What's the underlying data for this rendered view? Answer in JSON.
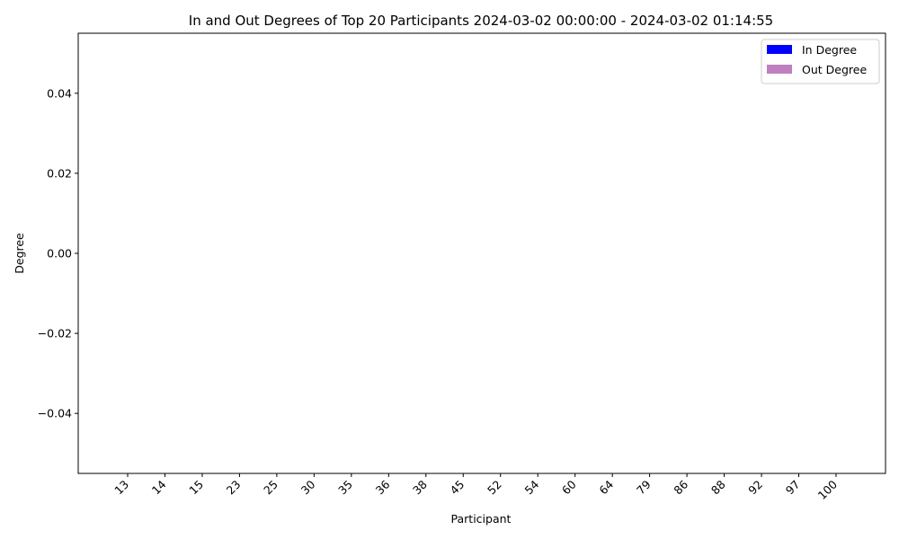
{
  "chart_data": {
    "type": "bar",
    "title": "In and Out Degrees of Top 20 Participants 2024-03-02 00:00:00 - 2024-03-02 01:14:55",
    "xlabel": "Participant",
    "ylabel": "Degree",
    "categories": [
      "13",
      "14",
      "15",
      "23",
      "25",
      "30",
      "35",
      "36",
      "38",
      "45",
      "52",
      "54",
      "60",
      "64",
      "79",
      "86",
      "88",
      "92",
      "97",
      "100"
    ],
    "series": [
      {
        "name": "In Degree",
        "color": "#0000ff",
        "values": [
          0,
          0,
          0,
          0,
          0,
          0,
          0,
          0,
          0,
          0,
          0,
          0,
          0,
          0,
          0,
          0,
          0,
          0,
          0,
          0
        ]
      },
      {
        "name": "Out Degree",
        "color": "#bf80bf",
        "values": [
          0,
          0,
          0,
          0,
          0,
          0,
          0,
          0,
          0,
          0,
          0,
          0,
          0,
          0,
          0,
          0,
          0,
          0,
          0,
          0
        ]
      }
    ],
    "ylim": [
      -0.055,
      0.055
    ],
    "yticks": [
      0.04,
      0.02,
      0.0,
      -0.02,
      -0.04
    ],
    "ytick_labels": [
      "0.04",
      "0.02",
      "0.00",
      "−0.02",
      "−0.04"
    ],
    "grid": false,
    "legend_position": "top-right"
  }
}
